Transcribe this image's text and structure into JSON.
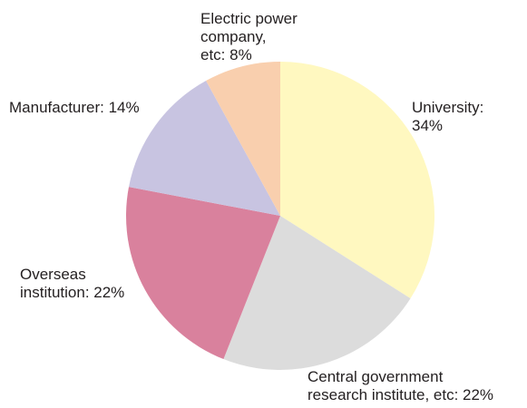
{
  "chart_data": {
    "type": "pie",
    "start_angle_deg": 0,
    "direction": "clockwise",
    "slices": [
      {
        "name": "University",
        "value": 34,
        "color": "#fff8c0",
        "label_lines": [
          "University:",
          "34%"
        ]
      },
      {
        "name": "Central government research institute, etc",
        "value": 22,
        "color": "#dcdcdc",
        "label_lines": [
          "Central government",
          "research institute, etc: 22%"
        ]
      },
      {
        "name": "Overseas institution",
        "value": 22,
        "color": "#d9819d",
        "label_lines": [
          "Overseas",
          "institution: 22%"
        ]
      },
      {
        "name": "Manufacturer",
        "value": 14,
        "color": "#c8c4e1",
        "label_lines": [
          "Manufacturer: 14%"
        ]
      },
      {
        "name": "Electric power company, etc",
        "value": 8,
        "color": "#f9cfae",
        "label_lines": [
          "Electric power",
          "company,",
          "etc: 8%"
        ]
      }
    ]
  }
}
